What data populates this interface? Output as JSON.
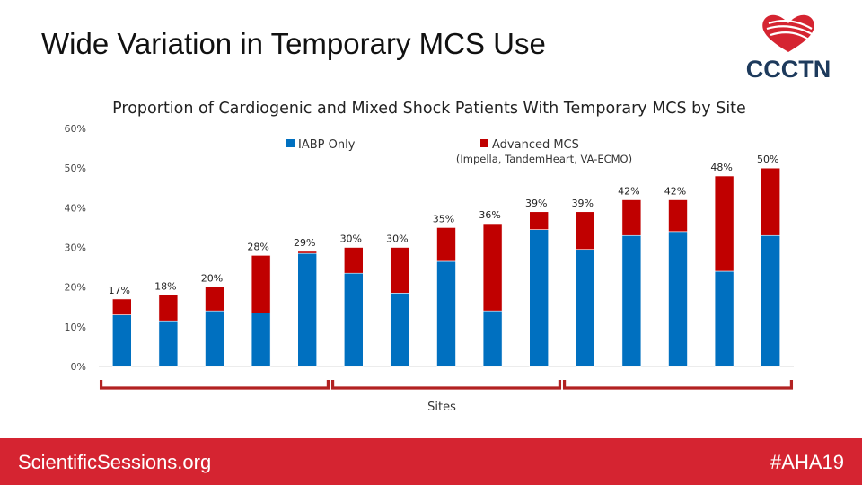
{
  "slide": {
    "title": "Wide Variation in Temporary MCS Use",
    "logo_text": "CCCTN",
    "footer_left": "ScientificSessions.org",
    "footer_right": "#AHA19"
  },
  "colors": {
    "iabp": "#0070c0",
    "advanced": "#c00000",
    "brace": "#b22222",
    "footer": "#d52431",
    "logo_red": "#d52431",
    "logo_navy": "#1d3a5c"
  },
  "chart_data": {
    "type": "bar",
    "stacked": true,
    "title": "Proportion of Cardiogenic and Mixed Shock Patients With Temporary MCS by Site",
    "xlabel": "Sites",
    "ylabel": "",
    "ylim": [
      0,
      60
    ],
    "yticks": [
      "0%",
      "10%",
      "20%",
      "30%",
      "40%",
      "50%",
      "60%"
    ],
    "grid": false,
    "legend_position": "top",
    "series": [
      {
        "name": "IABP Only",
        "color": "#0070c0",
        "values": [
          13,
          11.5,
          14,
          13.5,
          28.5,
          23.5,
          18.5,
          26.5,
          14,
          34.5,
          29.5,
          33,
          34,
          24,
          33
        ]
      },
      {
        "name": "Advanced MCS",
        "color": "#c00000",
        "values": [
          4,
          6.5,
          6,
          14.5,
          0.5,
          6.5,
          11.5,
          8.5,
          22,
          4.5,
          9.5,
          9,
          8,
          24,
          17
        ]
      }
    ],
    "legend_note": "(Impella, TandemHeart, VA-ECMO)",
    "totals": [
      17,
      18,
      20,
      28,
      29,
      30,
      30,
      35,
      36,
      39,
      39,
      42,
      42,
      48,
      50
    ],
    "total_labels": [
      "17%",
      "18%",
      "20%",
      "28%",
      "29%",
      "30%",
      "30%",
      "35%",
      "36%",
      "39%",
      "39%",
      "42%",
      "42%",
      "48%",
      "50%"
    ],
    "groups": [
      [
        0,
        4
      ],
      [
        5,
        9
      ],
      [
        10,
        14
      ]
    ]
  }
}
